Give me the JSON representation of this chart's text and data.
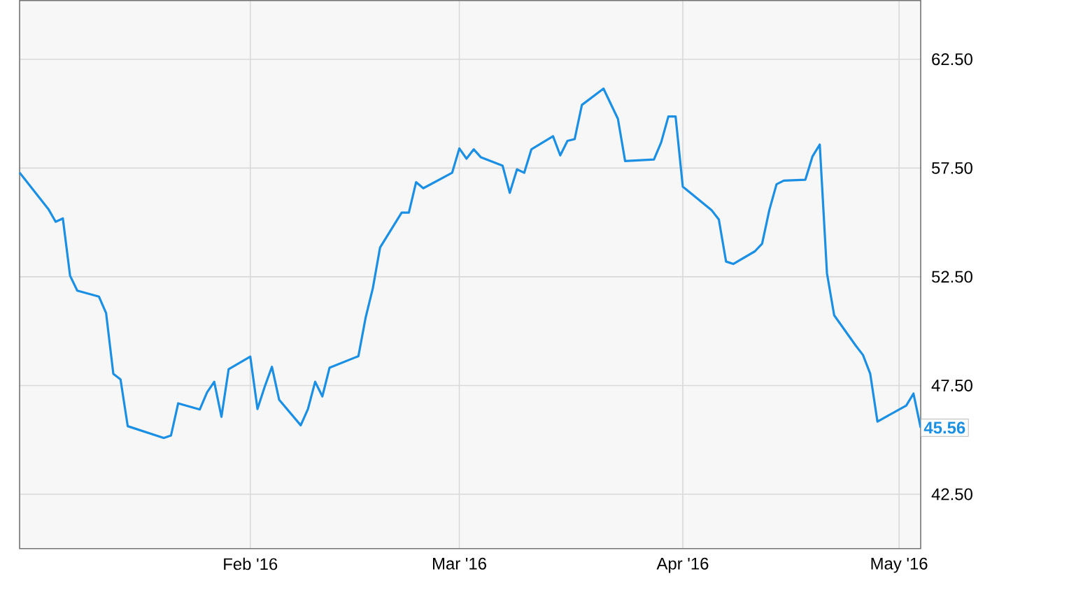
{
  "chart_data": {
    "type": "line",
    "x": [
      "2015-12-31",
      "2016-01-04",
      "2016-01-05",
      "2016-01-06",
      "2016-01-07",
      "2016-01-08",
      "2016-01-11",
      "2016-01-12",
      "2016-01-13",
      "2016-01-14",
      "2016-01-15",
      "2016-01-20",
      "2016-01-21",
      "2016-01-22",
      "2016-01-25",
      "2016-01-26",
      "2016-01-27",
      "2016-01-28",
      "2016-01-29",
      "2016-02-01",
      "2016-02-02",
      "2016-02-03",
      "2016-02-04",
      "2016-02-05",
      "2016-02-08",
      "2016-02-09",
      "2016-02-10",
      "2016-02-11",
      "2016-02-12",
      "2016-02-16",
      "2016-02-17",
      "2016-02-18",
      "2016-02-19",
      "2016-02-22",
      "2016-02-23",
      "2016-02-24",
      "2016-02-25",
      "2016-02-29",
      "2016-03-01",
      "2016-03-02",
      "2016-03-03",
      "2016-03-04",
      "2016-03-07",
      "2016-03-08",
      "2016-03-09",
      "2016-03-10",
      "2016-03-11",
      "2016-03-14",
      "2016-03-15",
      "2016-03-16",
      "2016-03-17",
      "2016-03-18",
      "2016-03-21",
      "2016-03-23",
      "2016-03-24",
      "2016-03-28",
      "2016-03-29",
      "2016-03-30",
      "2016-03-31",
      "2016-04-01",
      "2016-04-05",
      "2016-04-06",
      "2016-04-07",
      "2016-04-08",
      "2016-04-11",
      "2016-04-12",
      "2016-04-13",
      "2016-04-14",
      "2016-04-15",
      "2016-04-18",
      "2016-04-19",
      "2016-04-20",
      "2016-04-21",
      "2016-04-22",
      "2016-04-25",
      "2016-04-26",
      "2016-04-27",
      "2016-04-28",
      "2016-05-02",
      "2016-05-03",
      "2016-05-04"
    ],
    "series": [
      {
        "color": "#1a8fe3",
        "values": [
          57.29,
          55.61,
          55.03,
          55.18,
          52.55,
          51.86,
          51.59,
          50.83,
          48.04,
          47.78,
          45.63,
          45.09,
          45.2,
          46.68,
          46.4,
          47.18,
          47.67,
          46.06,
          48.25,
          48.83,
          46.42,
          47.44,
          48.36,
          46.85,
          45.67,
          46.42,
          47.67,
          47.0,
          48.32,
          48.85,
          50.62,
          51.97,
          53.84,
          55.45,
          55.45,
          56.85,
          56.57,
          57.28,
          58.4,
          57.93,
          58.36,
          57.99,
          57.61,
          56.36,
          57.44,
          57.28,
          58.36,
          58.96,
          58.08,
          58.75,
          58.83,
          60.4,
          61.15,
          59.76,
          57.82,
          57.89,
          58.68,
          59.87,
          59.87,
          56.64,
          55.56,
          55.13,
          53.2,
          53.09,
          53.67,
          54.02,
          55.56,
          56.75,
          56.92,
          56.96,
          58.04,
          58.58,
          52.66,
          50.73,
          49.33,
          48.9,
          48.04,
          45.84,
          46.58,
          47.13,
          45.56
        ]
      }
    ],
    "xlim": [
      "2015-12-31",
      "2016-05-04"
    ],
    "xticks": [
      {
        "value": "2016-02-01",
        "label": "Feb '16"
      },
      {
        "value": "2016-03-01",
        "label": "Mar '16"
      },
      {
        "value": "2016-04-01",
        "label": "Apr '16"
      },
      {
        "value": "2016-05-01",
        "label": "May '16"
      }
    ],
    "ylim": [
      40,
      65.2
    ],
    "yticks": [
      {
        "value": 42.5,
        "label": "42.50"
      },
      {
        "value": 47.5,
        "label": "47.50"
      },
      {
        "value": 52.5,
        "label": "52.50"
      },
      {
        "value": 57.5,
        "label": "57.50"
      },
      {
        "value": 62.5,
        "label": "62.50"
      }
    ],
    "grid": true,
    "annotations": [
      {
        "text": "45.56",
        "x": "2016-05-04",
        "y": 45.56
      }
    ]
  }
}
